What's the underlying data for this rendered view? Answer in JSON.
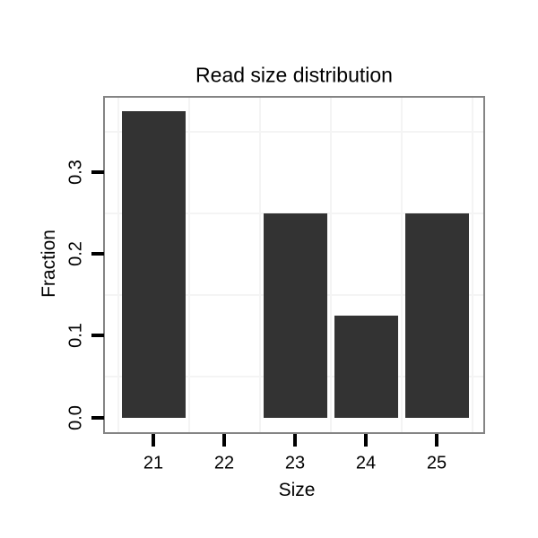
{
  "chart_data": {
    "type": "bar",
    "title": "Read size distribution",
    "xlabel": "Size",
    "ylabel": "Fraction",
    "categories": [
      "21",
      "22",
      "23",
      "24",
      "25"
    ],
    "values": [
      0.375,
      0,
      0.25,
      0.125,
      0.25
    ],
    "yticks": [
      0.0,
      0.1,
      0.2,
      0.3
    ],
    "ytick_labels": [
      "0.0",
      "0.1",
      "0.2",
      "0.3"
    ],
    "ylim": [
      -0.0195,
      0.392
    ],
    "grid": "minor-only",
    "minor_gridlines_y": [
      0.05,
      0.15,
      0.25,
      0.35
    ],
    "legend": "none",
    "colors": {
      "bar_fill": "#333333",
      "panel_border": "#848484",
      "minor_gridline": "#f4f4f4",
      "tick": "#000000",
      "text": "#000000",
      "background": "#ffffff"
    }
  }
}
